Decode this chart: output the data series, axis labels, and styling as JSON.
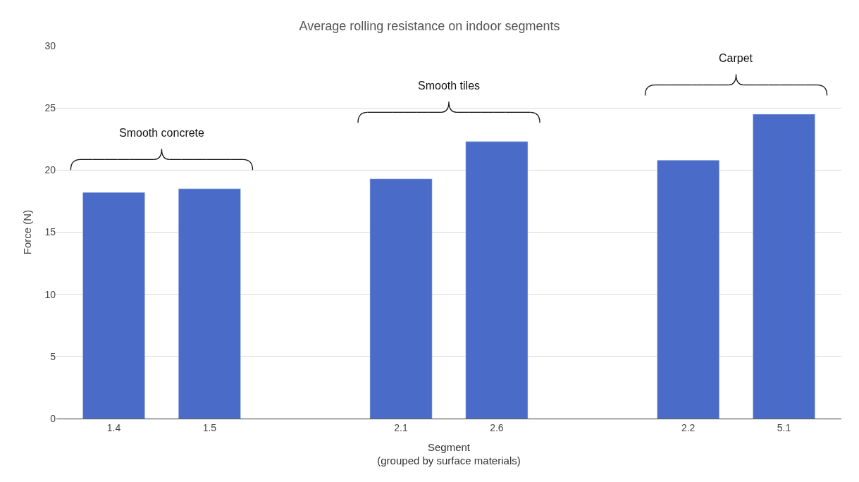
{
  "chart_data": {
    "type": "bar",
    "title": "Average rolling resistance on indoor segments",
    "xlabel": "Segment\n(grouped by surface materials)",
    "ylabel": "Force (N)",
    "categories": [
      "1.4",
      "1.5",
      null,
      "2.1",
      "2.6",
      null,
      "2.2",
      "5.1"
    ],
    "series": [
      {
        "color": "#4a6cc8",
        "values": [
          18.2,
          18.5,
          null,
          19.3,
          22.3,
          null,
          20.8,
          24.5
        ]
      }
    ],
    "ylim": [
      0,
      30
    ],
    "yticks": [
      0,
      5,
      10,
      15,
      20,
      25,
      30
    ],
    "grid": "y",
    "annotations": [
      "Smooth concrete",
      "Smooth tiles",
      "Carpet"
    ]
  }
}
